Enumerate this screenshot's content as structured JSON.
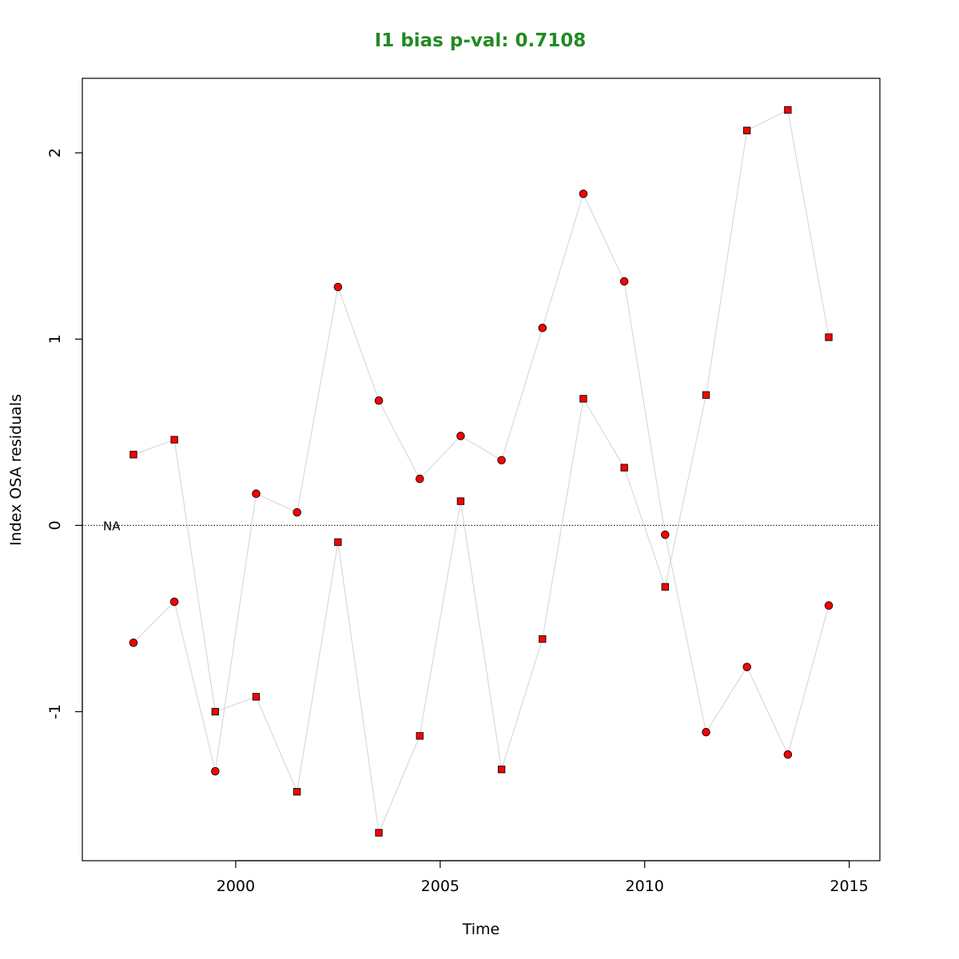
{
  "chart_data": {
    "type": "scatter",
    "title": "I1 bias p-val: 0.7108",
    "title_color": "#228B22",
    "xlabel": "Time",
    "ylabel": "Index OSA residuals",
    "xlim": [
      1996.25,
      2015.75
    ],
    "ylim": [
      -1.8,
      2.4
    ],
    "x_ticks": [
      2000,
      2005,
      2010,
      2015
    ],
    "y_ticks": [
      -1,
      0,
      1,
      2
    ],
    "x_tick_labels": [
      "2000",
      "2005",
      "2010",
      "2015"
    ],
    "y_tick_labels": [
      "-1",
      "0",
      "1",
      "2"
    ],
    "reference_line": {
      "y": 0,
      "style": "dotted",
      "label": "NA"
    },
    "point_fill": "#FF0000",
    "point_stroke": "#000000",
    "line_color": "#D3D3D3",
    "grid": false,
    "legend": "none",
    "series": [
      {
        "marker": "circle",
        "x": [
          1997.5,
          1998.5,
          1999.5,
          2000.5,
          2001.5,
          2002.5,
          2003.5,
          2004.5,
          2005.5,
          2006.5,
          2007.5,
          2008.5,
          2009.5,
          2010.5,
          2011.5,
          2012.5,
          2013.5,
          2014.5
        ],
        "y": [
          -0.63,
          -0.41,
          -1.32,
          0.17,
          0.07,
          1.28,
          0.67,
          0.25,
          0.48,
          0.35,
          1.06,
          1.78,
          1.31,
          -0.05,
          -1.11,
          -0.76,
          -1.23,
          -0.43
        ]
      },
      {
        "marker": "square",
        "x": [
          1997.5,
          1998.5,
          1999.5,
          2000.5,
          2001.5,
          2002.5,
          2003.5,
          2004.5,
          2005.5,
          2006.5,
          2007.5,
          2008.5,
          2009.5,
          2010.5,
          2011.5,
          2012.5,
          2013.5,
          2014.5
        ],
        "y": [
          0.38,
          0.46,
          -1.0,
          -0.92,
          -1.43,
          -0.09,
          -1.65,
          -1.13,
          0.13,
          -1.31,
          -0.61,
          0.68,
          0.31,
          -0.33,
          0.7,
          2.12,
          2.23,
          1.01
        ]
      }
    ]
  }
}
